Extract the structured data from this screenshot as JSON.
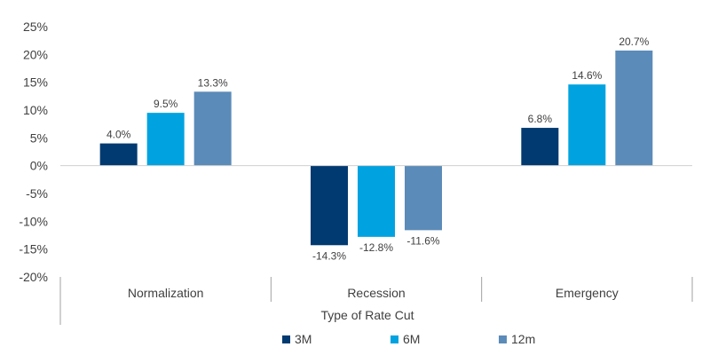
{
  "chart_data": {
    "type": "bar",
    "title": "",
    "xlabel": "Type of Rate Cut",
    "ylabel": "",
    "ylim": [
      -20,
      25
    ],
    "yticks": [
      25,
      20,
      15,
      10,
      5,
      0,
      -5,
      -10,
      -15,
      -20
    ],
    "ytick_suffix": "%",
    "categories": [
      "Normalization",
      "Recession",
      "Emergency"
    ],
    "series": [
      {
        "name": "3M",
        "color": "#003a70",
        "values": [
          4.0,
          -14.3,
          6.8
        ]
      },
      {
        "name": "6M",
        "color": "#00a3e0",
        "values": [
          9.5,
          -12.8,
          14.6
        ]
      },
      {
        "name": "12m",
        "color": "#5b8bb8",
        "values": [
          13.3,
          -11.6,
          20.7
        ]
      }
    ],
    "legend_position": "bottom-center",
    "grid": false
  }
}
